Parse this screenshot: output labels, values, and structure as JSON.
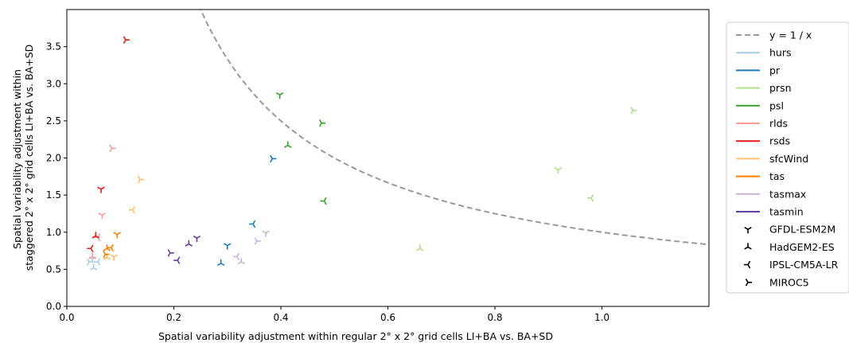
{
  "chart_data": {
    "type": "scatter",
    "xlabel": "Spatial variability adjustment within regular 2° x 2° grid cells LI+BA vs. BA+SD",
    "ylabel_lines": [
      "Spatial variability adjustment within",
      "staggered 2° x 2° grid cells LI+BA vs. BA+SD"
    ],
    "xlim": [
      0.0,
      1.2
    ],
    "ylim": [
      0.0,
      4.0
    ],
    "x_ticks": [
      0.0,
      0.2,
      0.4,
      0.6,
      0.8,
      1.0
    ],
    "x_tick_labels": [
      "0.0",
      "0.2",
      "0.4",
      "0.6",
      "0.8",
      "1.0"
    ],
    "y_ticks": [
      0.0,
      0.5,
      1.0,
      1.5,
      2.0,
      2.5,
      3.0,
      3.5
    ],
    "y_tick_labels": [
      "0.0",
      "0.5",
      "1.0",
      "1.5",
      "2.0",
      "2.5",
      "3.0",
      "3.5"
    ],
    "grid": false,
    "legend_position": "outside-right",
    "reference_curve": {
      "label": "y = 1 / x",
      "color": "#999999",
      "style": "dashed"
    },
    "variables": [
      {
        "name": "hurs",
        "color": "#a6cee3"
      },
      {
        "name": "pr",
        "color": "#1f78b4"
      },
      {
        "name": "prsn",
        "color": "#b2df8a"
      },
      {
        "name": "psl",
        "color": "#33a02c"
      },
      {
        "name": "rlds",
        "color": "#fb9a99"
      },
      {
        "name": "rsds",
        "color": "#e31a1c"
      },
      {
        "name": "sfcWind",
        "color": "#fdbf6f"
      },
      {
        "name": "tas",
        "color": "#ff7f00"
      },
      {
        "name": "tasmax",
        "color": "#cab2d6"
      },
      {
        "name": "tasmin",
        "color": "#6a3d9a"
      }
    ],
    "models": [
      {
        "name": "GFDL-ESM2M",
        "marker": "tri_down"
      },
      {
        "name": "HadGEM2-ES",
        "marker": "tri_up"
      },
      {
        "name": "IPSL-CM5A-LR",
        "marker": "tri_left"
      },
      {
        "name": "MIROC5",
        "marker": "tri_right"
      }
    ],
    "points": [
      {
        "var": "hurs",
        "model": "GFDL-ESM2M",
        "x": 0.048,
        "y": 0.64
      },
      {
        "var": "hurs",
        "model": "HadGEM2-ES",
        "x": 0.05,
        "y": 0.52
      },
      {
        "var": "hurs",
        "model": "IPSL-CM5A-LR",
        "x": 0.058,
        "y": 0.6
      },
      {
        "var": "hurs",
        "model": "MIROC5",
        "x": 0.042,
        "y": 0.6
      },
      {
        "var": "pr",
        "model": "GFDL-ESM2M",
        "x": 0.3,
        "y": 0.82
      },
      {
        "var": "pr",
        "model": "HadGEM2-ES",
        "x": 0.288,
        "y": 0.58
      },
      {
        "var": "pr",
        "model": "IPSL-CM5A-LR",
        "x": 0.348,
        "y": 1.11
      },
      {
        "var": "pr",
        "model": "MIROC5",
        "x": 0.384,
        "y": 1.99
      },
      {
        "var": "prsn",
        "model": "GFDL-ESM2M",
        "x": 0.918,
        "y": 1.84
      },
      {
        "var": "prsn",
        "model": "HadGEM2-ES",
        "x": 0.66,
        "y": 0.78
      },
      {
        "var": "prsn",
        "model": "IPSL-CM5A-LR",
        "x": 0.98,
        "y": 1.46
      },
      {
        "var": "prsn",
        "model": "MIROC5",
        "x": 1.058,
        "y": 2.64
      },
      {
        "var": "psl",
        "model": "GFDL-ESM2M",
        "x": 0.398,
        "y": 2.85
      },
      {
        "var": "psl",
        "model": "HadGEM2-ES",
        "x": 0.413,
        "y": 2.17
      },
      {
        "var": "psl",
        "model": "IPSL-CM5A-LR",
        "x": 0.481,
        "y": 1.42
      },
      {
        "var": "psl",
        "model": "MIROC5",
        "x": 0.476,
        "y": 2.47
      },
      {
        "var": "rlds",
        "model": "GFDL-ESM2M",
        "x": 0.066,
        "y": 1.23
      },
      {
        "var": "rlds",
        "model": "HadGEM2-ES",
        "x": 0.048,
        "y": 0.67
      },
      {
        "var": "rlds",
        "model": "IPSL-CM5A-LR",
        "x": 0.058,
        "y": 0.93
      },
      {
        "var": "rlds",
        "model": "MIROC5",
        "x": 0.084,
        "y": 2.13
      },
      {
        "var": "rsds",
        "model": "GFDL-ESM2M",
        "x": 0.064,
        "y": 1.58
      },
      {
        "var": "rsds",
        "model": "HadGEM2-ES",
        "x": 0.054,
        "y": 0.95
      },
      {
        "var": "rsds",
        "model": "IPSL-CM5A-LR",
        "x": 0.045,
        "y": 0.78
      },
      {
        "var": "rsds",
        "model": "MIROC5",
        "x": 0.11,
        "y": 3.59
      },
      {
        "var": "sfcWind",
        "model": "GFDL-ESM2M",
        "x": 0.088,
        "y": 0.67
      },
      {
        "var": "sfcWind",
        "model": "HadGEM2-ES",
        "x": 0.075,
        "y": 0.66
      },
      {
        "var": "sfcWind",
        "model": "IPSL-CM5A-LR",
        "x": 0.123,
        "y": 1.3
      },
      {
        "var": "sfcWind",
        "model": "MIROC5",
        "x": 0.137,
        "y": 1.71
      },
      {
        "var": "tas",
        "model": "GFDL-ESM2M",
        "x": 0.094,
        "y": 0.97
      },
      {
        "var": "tas",
        "model": "HadGEM2-ES",
        "x": 0.075,
        "y": 0.78
      },
      {
        "var": "tas",
        "model": "IPSL-CM5A-LR",
        "x": 0.083,
        "y": 0.79
      },
      {
        "var": "tas",
        "model": "MIROC5",
        "x": 0.072,
        "y": 0.7
      },
      {
        "var": "tasmax",
        "model": "GFDL-ESM2M",
        "x": 0.372,
        "y": 0.99
      },
      {
        "var": "tasmax",
        "model": "HadGEM2-ES",
        "x": 0.326,
        "y": 0.6
      },
      {
        "var": "tasmax",
        "model": "IPSL-CM5A-LR",
        "x": 0.318,
        "y": 0.67
      },
      {
        "var": "tasmax",
        "model": "MIROC5",
        "x": 0.355,
        "y": 0.88
      },
      {
        "var": "tasmin",
        "model": "GFDL-ESM2M",
        "x": 0.243,
        "y": 0.92
      },
      {
        "var": "tasmin",
        "model": "HadGEM2-ES",
        "x": 0.228,
        "y": 0.84
      },
      {
        "var": "tasmin",
        "model": "IPSL-CM5A-LR",
        "x": 0.207,
        "y": 0.62
      },
      {
        "var": "tasmin",
        "model": "MIROC5",
        "x": 0.193,
        "y": 0.72
      }
    ]
  }
}
